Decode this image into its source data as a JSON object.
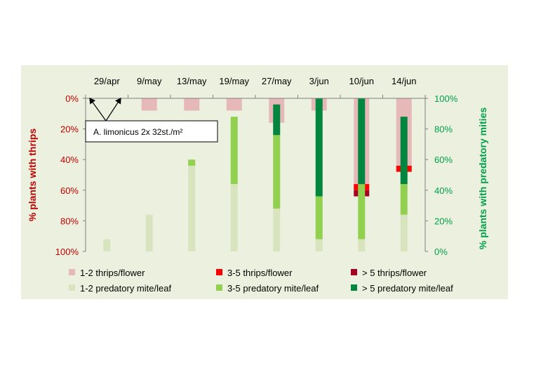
{
  "chart_data": {
    "type": "bar",
    "categories": [
      "29/apr",
      "9/may",
      "13/may",
      "19/may",
      "27/may",
      "3/jun",
      "10/jun",
      "14/jun"
    ],
    "left_axis": {
      "label": "% plants with thrips",
      "ticks": [
        "0%",
        "20%",
        "40%",
        "60%",
        "80%",
        "100%"
      ],
      "range": [
        0,
        100
      ],
      "inverted": true,
      "color": "#c00000"
    },
    "right_axis": {
      "label": "% plants with predatory mities",
      "ticks": [
        "0%",
        "20%",
        "40%",
        "60%",
        "80%",
        "100%"
      ],
      "range": [
        0,
        100
      ],
      "color": "#00a04a"
    },
    "thrips_series": [
      {
        "name": "1-2 thrips/flower",
        "color": "#e6b8b7",
        "values": [
          0,
          8,
          8,
          8,
          16,
          8,
          56,
          44
        ]
      },
      {
        "name": "3-5 thrips/flower",
        "color": "#ff0000",
        "values": [
          0,
          0,
          0,
          0,
          0,
          0,
          4,
          4
        ]
      },
      {
        "name": "> 5 thrips/flower",
        "color": "#a50021",
        "values": [
          0,
          0,
          0,
          0,
          0,
          0,
          4,
          0
        ]
      }
    ],
    "mite_series": [
      {
        "name": "1-2 predatory mite/leaf",
        "color": "#d7e4bd",
        "values": [
          8,
          24,
          56,
          44,
          28,
          8,
          8,
          24
        ]
      },
      {
        "name": "3-5 predatory mite/leaf",
        "color": "#92d050",
        "values": [
          0,
          0,
          4,
          44,
          48,
          28,
          36,
          20
        ]
      },
      {
        "name": "> 5 predatory mite/leaf",
        "color": "#00863f",
        "values": [
          0,
          0,
          0,
          0,
          20,
          64,
          56,
          44
        ]
      }
    ],
    "annotation": "A. limonicus 2x 32st./m²",
    "legend_position": "bottom",
    "grid": false
  }
}
